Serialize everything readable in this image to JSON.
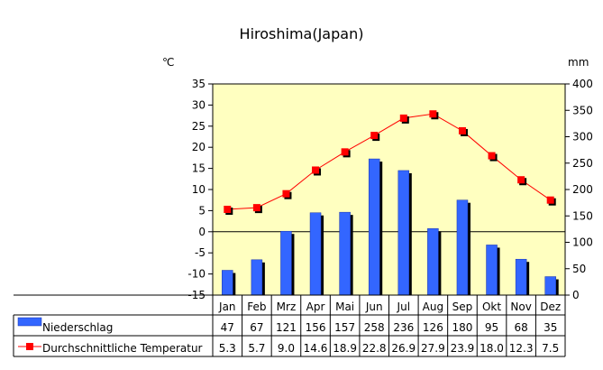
{
  "chart_data": {
    "type": "bar+line",
    "title": "Hiroshima(Japan)",
    "y_left_unit": "℃",
    "y_right_unit": "mm",
    "y_left_ticks": [
      "35",
      "30",
      "25",
      "20",
      "15",
      "10",
      "5",
      "0",
      "-5",
      "-10",
      "-15"
    ],
    "y_right_ticks": [
      "400",
      "350",
      "300",
      "250",
      "200",
      "150",
      "100",
      "50",
      "0"
    ],
    "ylim_left": [
      -15,
      35
    ],
    "ylim_right": [
      0,
      400
    ],
    "categories": [
      "Jan",
      "Feb",
      "Mrz",
      "Apr",
      "Mai",
      "Jun",
      "Jul",
      "Aug",
      "Sep",
      "Okt",
      "Nov",
      "Dez"
    ],
    "series": [
      {
        "name": "Niederschlag",
        "type": "bar",
        "axis": "right",
        "color": "#3366ff",
        "values": [
          47,
          67,
          121,
          156,
          157,
          258,
          236,
          126,
          180,
          95,
          68,
          35
        ],
        "labels": [
          "47",
          "67",
          "121",
          "156",
          "157",
          "258",
          "236",
          "126",
          "180",
          "95",
          "68",
          "35"
        ]
      },
      {
        "name": "Durchschnittliche Temperatur",
        "type": "line",
        "axis": "left",
        "color": "#ff0000",
        "values": [
          5.3,
          5.7,
          9.0,
          14.6,
          18.9,
          22.8,
          26.9,
          27.9,
          23.9,
          18.0,
          12.3,
          7.5
        ],
        "labels": [
          "5.3",
          "5.7",
          "9.0",
          "14.6",
          "18.9",
          "22.8",
          "26.9",
          "27.9",
          "23.9",
          "18.0",
          "12.3",
          "7.5"
        ]
      }
    ],
    "plot_background": "#ffffc0",
    "grid": false,
    "legend": "data-table-below"
  }
}
